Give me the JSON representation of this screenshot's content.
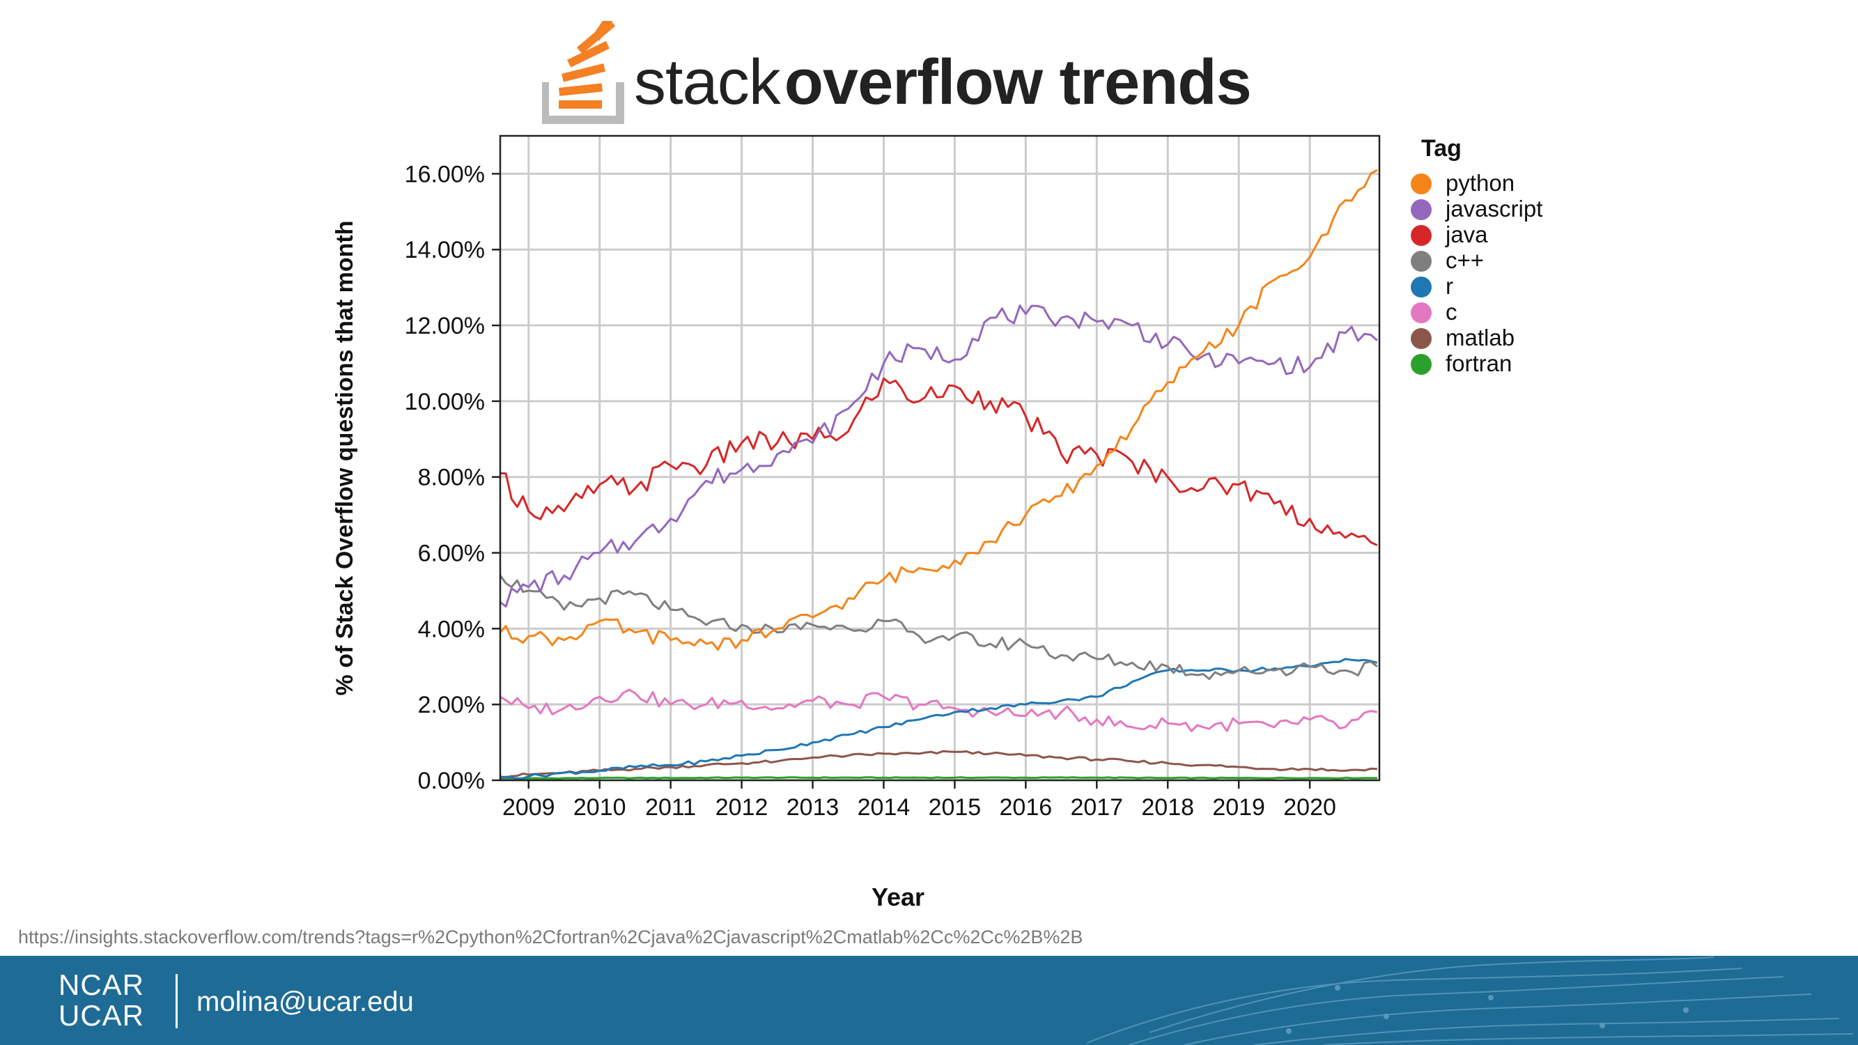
{
  "logo": {
    "word_light": "stack",
    "word_bold": "overflow trends"
  },
  "source_url": "https://insights.stackoverflow.com/trends?tags=r%2Cpython%2Cfortran%2Cjava%2Cjavascript%2Cmatlab%2Cc%2Cc%2B%2B",
  "footer": {
    "org_line1": "NCAR",
    "org_line2": "UCAR",
    "email": "molina@ucar.edu",
    "background": "#1e6b96"
  },
  "chart_data": {
    "type": "line",
    "title": "",
    "xlabel": "Year",
    "ylabel": "% of Stack Overflow questions that month",
    "legend_title": "Tag",
    "legend_position": "right",
    "grid": true,
    "xlim": [
      2008.6,
      2020.98
    ],
    "ylim": [
      0,
      17
    ],
    "x_ticks": [
      2009,
      2010,
      2011,
      2012,
      2013,
      2014,
      2015,
      2016,
      2017,
      2018,
      2019,
      2020
    ],
    "x_tick_labels": [
      "2009",
      "2010",
      "2011",
      "2012",
      "2013",
      "2014",
      "2015",
      "2016",
      "2017",
      "2018",
      "2019",
      "2020"
    ],
    "y_ticks": [
      0,
      2,
      4,
      6,
      8,
      10,
      12,
      14,
      16
    ],
    "y_tick_labels": [
      "0.00%",
      "2.00%",
      "4.00%",
      "6.00%",
      "8.00%",
      "10.00%",
      "12.00%",
      "14.00%",
      "16.00%"
    ],
    "series": [
      {
        "name": "python",
        "color": "#f58518",
        "x": [
          2008.6,
          2009.0,
          2009.5,
          2010.0,
          2010.5,
          2011.0,
          2011.5,
          2012.0,
          2012.5,
          2013.0,
          2013.5,
          2014.0,
          2014.5,
          2015.0,
          2015.5,
          2016.0,
          2016.5,
          2017.0,
          2017.5,
          2018.0,
          2018.5,
          2019.0,
          2019.5,
          2020.0,
          2020.5,
          2020.95
        ],
        "y": [
          3.9,
          3.8,
          3.7,
          4.2,
          3.9,
          3.7,
          3.6,
          3.7,
          4.0,
          4.3,
          4.8,
          5.3,
          5.6,
          5.8,
          6.3,
          7.0,
          7.5,
          8.3,
          9.3,
          10.5,
          11.3,
          12.0,
          13.2,
          13.8,
          15.3,
          16.1
        ]
      },
      {
        "name": "javascript",
        "color": "#9467bd",
        "x": [
          2008.6,
          2009.0,
          2009.5,
          2010.0,
          2010.5,
          2011.0,
          2011.5,
          2012.0,
          2012.5,
          2013.0,
          2013.5,
          2014.0,
          2014.5,
          2015.0,
          2015.5,
          2016.0,
          2016.5,
          2017.0,
          2017.5,
          2018.0,
          2018.5,
          2019.0,
          2019.5,
          2020.0,
          2020.5,
          2020.95
        ],
        "y": [
          4.7,
          5.1,
          5.4,
          6.0,
          6.3,
          6.9,
          7.9,
          8.2,
          8.6,
          8.9,
          9.8,
          11.0,
          11.4,
          11.1,
          12.2,
          12.3,
          12.2,
          12.1,
          12.0,
          11.5,
          11.2,
          11.0,
          11.0,
          10.9,
          11.8,
          11.6
        ]
      },
      {
        "name": "java",
        "color": "#d62728",
        "x": [
          2008.6,
          2009.0,
          2009.5,
          2010.0,
          2010.5,
          2011.0,
          2011.5,
          2012.0,
          2012.5,
          2013.0,
          2013.5,
          2014.0,
          2014.5,
          2015.0,
          2015.5,
          2016.0,
          2016.5,
          2017.0,
          2017.5,
          2018.0,
          2018.5,
          2019.0,
          2019.5,
          2020.0,
          2020.5,
          2020.95
        ],
        "y": [
          8.1,
          7.1,
          7.1,
          7.8,
          7.7,
          8.3,
          8.3,
          8.9,
          8.9,
          9.0,
          9.2,
          10.6,
          10.0,
          10.4,
          10.0,
          9.6,
          8.6,
          8.6,
          8.4,
          8.0,
          7.7,
          7.8,
          7.3,
          6.9,
          6.4,
          6.2
        ]
      },
      {
        "name": "c++",
        "color": "#7f7f7f",
        "x": [
          2008.6,
          2009.0,
          2009.5,
          2010.0,
          2010.5,
          2011.0,
          2011.5,
          2012.0,
          2012.5,
          2013.0,
          2013.5,
          2014.0,
          2014.5,
          2015.0,
          2015.5,
          2016.0,
          2016.5,
          2017.0,
          2017.5,
          2018.0,
          2018.5,
          2019.0,
          2019.5,
          2020.0,
          2020.5,
          2020.95
        ],
        "y": [
          5.4,
          5.0,
          4.5,
          4.8,
          4.9,
          4.5,
          4.1,
          4.1,
          3.9,
          4.1,
          4.0,
          4.2,
          3.8,
          3.8,
          3.6,
          3.6,
          3.3,
          3.2,
          3.1,
          3.0,
          2.8,
          2.9,
          2.9,
          3.0,
          2.9,
          3.0
        ]
      },
      {
        "name": "r",
        "color": "#1f77b4",
        "x": [
          2008.6,
          2009.0,
          2009.5,
          2010.0,
          2010.5,
          2011.0,
          2011.5,
          2012.0,
          2012.5,
          2013.0,
          2013.5,
          2014.0,
          2014.5,
          2015.0,
          2015.5,
          2016.0,
          2016.5,
          2017.0,
          2017.5,
          2018.0,
          2018.5,
          2019.0,
          2019.5,
          2020.0,
          2020.5,
          2020.95
        ],
        "y": [
          0.05,
          0.1,
          0.2,
          0.25,
          0.35,
          0.4,
          0.5,
          0.65,
          0.8,
          1.0,
          1.2,
          1.4,
          1.6,
          1.8,
          1.9,
          2.0,
          2.1,
          2.2,
          2.6,
          2.9,
          2.9,
          2.9,
          2.95,
          3.0,
          3.2,
          3.1
        ]
      },
      {
        "name": "c",
        "color": "#e377c2",
        "x": [
          2008.6,
          2009.0,
          2009.5,
          2010.0,
          2010.5,
          2011.0,
          2011.5,
          2012.0,
          2012.5,
          2013.0,
          2013.5,
          2014.0,
          2014.5,
          2015.0,
          2015.5,
          2016.0,
          2016.5,
          2017.0,
          2017.5,
          2018.0,
          2018.5,
          2019.0,
          2019.5,
          2020.0,
          2020.5,
          2020.95
        ],
        "y": [
          2.2,
          1.9,
          1.9,
          2.2,
          2.3,
          2.0,
          2.0,
          2.1,
          1.9,
          2.1,
          2.0,
          2.2,
          2.0,
          1.9,
          1.8,
          1.7,
          1.8,
          1.6,
          1.4,
          1.5,
          1.4,
          1.5,
          1.4,
          1.6,
          1.4,
          1.8
        ]
      },
      {
        "name": "matlab",
        "color": "#8c564b",
        "x": [
          2008.6,
          2009.0,
          2009.5,
          2010.0,
          2010.5,
          2011.0,
          2011.5,
          2012.0,
          2012.5,
          2013.0,
          2013.5,
          2014.0,
          2014.5,
          2015.0,
          2015.5,
          2016.0,
          2016.5,
          2017.0,
          2017.5,
          2018.0,
          2018.5,
          2019.0,
          2019.5,
          2020.0,
          2020.5,
          2020.95
        ],
        "y": [
          0.1,
          0.15,
          0.2,
          0.25,
          0.3,
          0.35,
          0.4,
          0.45,
          0.5,
          0.6,
          0.65,
          0.7,
          0.7,
          0.75,
          0.7,
          0.65,
          0.6,
          0.55,
          0.5,
          0.45,
          0.4,
          0.35,
          0.3,
          0.3,
          0.25,
          0.3
        ]
      },
      {
        "name": "fortran",
        "color": "#2ca02c",
        "x": [
          2008.6,
          2009.0,
          2010.0,
          2011.0,
          2012.0,
          2013.0,
          2014.0,
          2015.0,
          2016.0,
          2017.0,
          2018.0,
          2019.0,
          2020.0,
          2020.95
        ],
        "y": [
          0.05,
          0.05,
          0.06,
          0.06,
          0.07,
          0.07,
          0.07,
          0.07,
          0.07,
          0.07,
          0.06,
          0.06,
          0.06,
          0.06
        ]
      }
    ]
  }
}
